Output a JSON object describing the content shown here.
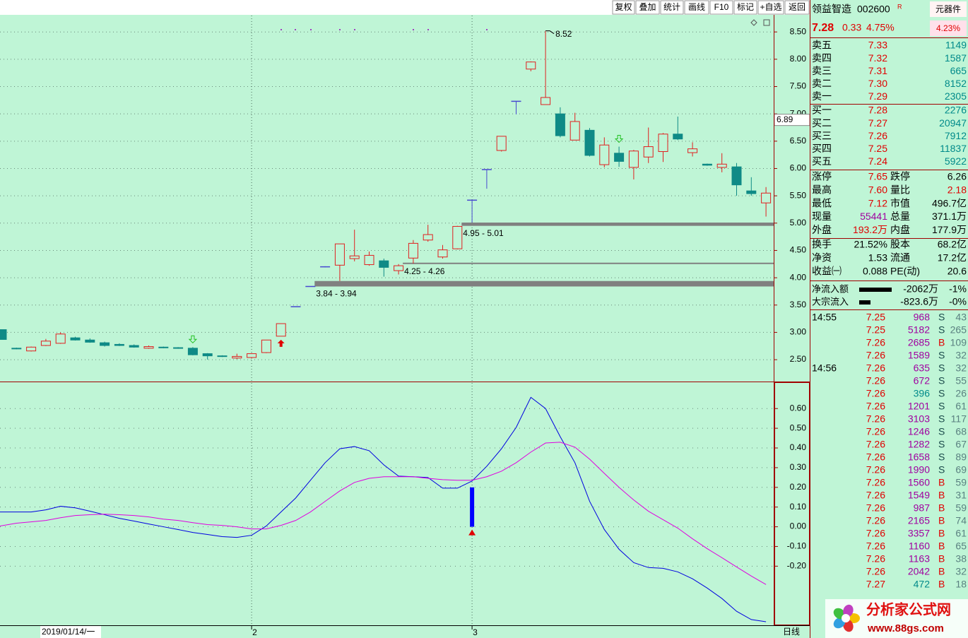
{
  "toolbar": [
    "复权",
    "叠加",
    "统计",
    "画线",
    "F10",
    "标记",
    "+自选",
    "返回"
  ],
  "chart_data": [
    {
      "type": "candlestick",
      "categories": [
        null,
        null,
        null,
        null,
        null,
        null,
        null,
        null,
        null,
        null,
        null,
        null,
        null,
        null,
        null,
        null,
        null,
        "2",
        null,
        null,
        null,
        null,
        null,
        null,
        null,
        null,
        null,
        null,
        null,
        null,
        null,
        null,
        "3",
        null,
        null,
        null,
        null,
        null,
        null,
        null,
        null,
        null,
        null,
        null,
        null,
        null,
        null,
        null,
        null,
        null,
        null,
        null,
        null
      ],
      "open": [
        3.05,
        2.71,
        2.66,
        2.76,
        2.8,
        2.9,
        2.86,
        2.81,
        2.78,
        2.76,
        2.71,
        2.73,
        2.72,
        2.71,
        2.61,
        2.57,
        2.53,
        2.54,
        2.63,
        2.93,
        3.47,
        3.84,
        4.2,
        4.23,
        4.35,
        4.24,
        4.31,
        4.13,
        4.36,
        4.69,
        4.38,
        4.53,
        5.42,
        5.98,
        6.33,
        7.23,
        7.82,
        7.17,
        7.0,
        6.52,
        6.7,
        6.07,
        6.28,
        6.02,
        6.21,
        6.31,
        6.63,
        6.29,
        6.08,
        6.02,
        6.03,
        5.59,
        5.37
      ],
      "high": [
        3.05,
        2.72,
        2.74,
        2.88,
        3.0,
        2.92,
        2.89,
        2.83,
        2.8,
        2.78,
        2.76,
        2.74,
        2.73,
        2.73,
        2.62,
        2.58,
        2.61,
        2.62,
        2.86,
        3.16,
        3.47,
        3.84,
        4.21,
        4.62,
        4.88,
        4.48,
        4.35,
        4.25,
        4.69,
        4.97,
        4.6,
        4.95,
        5.42,
        5.98,
        6.59,
        7.23,
        7.96,
        8.52,
        7.12,
        7.02,
        6.74,
        6.57,
        6.4,
        6.34,
        6.75,
        6.65,
        6.95,
        6.48,
        6.09,
        6.28,
        6.1,
        5.84,
        5.66
      ],
      "low": [
        2.87,
        2.69,
        2.65,
        2.75,
        2.79,
        2.85,
        2.81,
        2.74,
        2.75,
        2.72,
        2.7,
        2.71,
        2.7,
        2.58,
        2.5,
        2.55,
        2.51,
        2.52,
        2.62,
        2.93,
        3.47,
        3.84,
        4.19,
        3.94,
        4.3,
        4.22,
        4.02,
        4.06,
        4.26,
        4.66,
        4.35,
        4.52,
        5.01,
        5.63,
        6.31,
        6.99,
        7.78,
        7.17,
        6.57,
        6.52,
        6.22,
        6.02,
        6.03,
        5.8,
        6.1,
        6.12,
        6.52,
        6.22,
        6.05,
        5.93,
        5.5,
        5.5,
        5.12
      ],
      "close": [
        2.87,
        2.7,
        2.73,
        2.84,
        2.97,
        2.86,
        2.82,
        2.76,
        2.76,
        2.73,
        2.74,
        2.72,
        2.71,
        2.59,
        2.57,
        2.56,
        2.56,
        2.61,
        2.86,
        3.16,
        3.47,
        3.84,
        4.2,
        4.62,
        4.4,
        4.41,
        4.19,
        4.22,
        4.63,
        4.79,
        4.51,
        4.94,
        5.42,
        5.98,
        6.59,
        7.23,
        7.95,
        7.3,
        6.6,
        6.86,
        6.24,
        6.43,
        6.13,
        6.32,
        6.4,
        6.63,
        6.54,
        6.36,
        6.06,
        6.08,
        5.7,
        5.54,
        5.55
      ],
      "up_color": "#e02020",
      "down_color": "#0f8a86",
      "flat_color": "#4848d0",
      "ylim": [
        2.1,
        8.8
      ],
      "yticks": [
        {
          "value": 2.5,
          "label": "2.50"
        },
        {
          "value": 3.0,
          "label": "3.00"
        },
        {
          "value": 3.5,
          "label": "3.50"
        },
        {
          "value": 4.0,
          "label": "4.00"
        },
        {
          "value": 4.5,
          "label": "4.50"
        },
        {
          "value": 5.0,
          "label": "5.00"
        },
        {
          "value": 5.5,
          "label": "5.50"
        },
        {
          "value": 6.0,
          "label": "6.00"
        },
        {
          "value": 6.5,
          "label": "6.50"
        },
        {
          "value": 7.0,
          "label": "7.00"
        },
        {
          "value": 7.5,
          "label": "7.50"
        },
        {
          "value": 8.0,
          "label": "8.00"
        },
        {
          "value": 8.5,
          "label": "8.50"
        }
      ],
      "grid": true,
      "gaps": [
        {
          "low": 3.84,
          "high": 3.94,
          "label": "3.84 - 3.94"
        },
        {
          "low": 4.25,
          "high": 4.26,
          "label": "4.25 - 4.26"
        },
        {
          "low": 4.95,
          "high": 5.01,
          "label": "4.95 - 5.01"
        }
      ],
      "gap_color": "#808080",
      "cursor_price": 6.89,
      "cursor_date": "2019/01/14/一",
      "period": "日线"
    },
    {
      "type": "line",
      "ylim": [
        -0.5,
        0.73
      ],
      "yticks": [
        {
          "value": -0.2,
          "label": "-0.20"
        },
        {
          "value": -0.1,
          "label": "-0.10"
        },
        {
          "value": 0,
          "label": "0.00"
        },
        {
          "value": 0.1,
          "label": "0.10"
        },
        {
          "value": 0.2,
          "label": "0.20"
        },
        {
          "value": 0.3,
          "label": "0.30"
        },
        {
          "value": 0.4,
          "label": "0.40"
        },
        {
          "value": 0.5,
          "label": "0.50"
        },
        {
          "value": 0.6,
          "label": "0.60"
        }
      ],
      "grid": true,
      "series": [
        {
          "color": "#0000e0",
          "values": [
            0.075,
            0.075,
            0.075,
            0.086,
            0.104,
            0.096,
            0.079,
            0.061,
            0.043,
            0.029,
            0.014,
            0,
            -0.014,
            -0.029,
            -0.039,
            -0.05,
            -0.054,
            -0.043,
            0.004,
            0.075,
            0.146,
            0.236,
            0.325,
            0.396,
            0.407,
            0.386,
            0.314,
            0.257,
            0.254,
            0.25,
            0.196,
            0.196,
            0.232,
            0.307,
            0.396,
            0.504,
            0.657,
            0.6,
            0.457,
            0.325,
            0.129,
            -0.014,
            -0.114,
            -0.182,
            -0.207,
            -0.211,
            -0.229,
            -0.264,
            -0.311,
            -0.364,
            -0.429,
            -0.471,
            -0.482
          ]
        },
        {
          "color": "#e000e0",
          "values": [
            0.004,
            0.018,
            0.025,
            0.032,
            0.046,
            0.057,
            0.061,
            0.064,
            0.061,
            0.057,
            0.05,
            0.039,
            0.032,
            0.021,
            0.011,
            0.007,
            0,
            -0.011,
            -0.011,
            0.007,
            0.032,
            0.075,
            0.129,
            0.182,
            0.225,
            0.246,
            0.254,
            0.254,
            0.254,
            0.246,
            0.239,
            0.236,
            0.236,
            0.254,
            0.282,
            0.325,
            0.379,
            0.425,
            0.429,
            0.404,
            0.343,
            0.271,
            0.2,
            0.136,
            0.079,
            0.036,
            -0.007,
            -0.061,
            -0.111,
            -0.157,
            -0.204,
            -0.25,
            -0.293
          ]
        },
        {
          "type": "bar",
          "color": "#0000ff",
          "values": [
            null,
            null,
            null,
            null,
            null,
            null,
            null,
            null,
            null,
            null,
            null,
            null,
            null,
            null,
            null,
            null,
            null,
            null,
            null,
            null,
            null,
            null,
            null,
            null,
            null,
            null,
            null,
            null,
            null,
            null,
            null,
            null,
            0.2,
            null,
            null,
            null,
            null,
            null,
            null,
            null,
            null,
            null,
            null,
            null,
            null,
            null,
            null,
            null,
            null,
            null,
            null,
            null,
            null
          ]
        }
      ]
    }
  ],
  "quote": {
    "name": "领益智造",
    "code": "002600",
    "flag": "R",
    "industry": "元器件",
    "price": "7.28",
    "change": "0.33",
    "pct": "4.75%",
    "badge": "4.23%"
  },
  "order_book": {
    "asks": [
      [
        "卖五",
        "7.33",
        "1149"
      ],
      [
        "卖四",
        "7.32",
        "1587"
      ],
      [
        "卖三",
        "7.31",
        "665"
      ],
      [
        "卖二",
        "7.30",
        "8152"
      ],
      [
        "卖一",
        "7.29",
        "2305"
      ]
    ],
    "bids": [
      [
        "买一",
        "7.28",
        "2276"
      ],
      [
        "买二",
        "7.27",
        "20947"
      ],
      [
        "买三",
        "7.26",
        "7912"
      ],
      [
        "买四",
        "7.25",
        "11837"
      ],
      [
        "买五",
        "7.24",
        "5922"
      ]
    ]
  },
  "stats": [
    [
      "涨停",
      "7.65",
      "跌停",
      "6.26"
    ],
    [
      "最高",
      "7.60",
      "量比",
      "2.18"
    ],
    [
      "最低",
      "7.12",
      "市值",
      "496.7亿"
    ],
    [
      "现量",
      "55441",
      "总量",
      "371.1万"
    ],
    [
      "外盘",
      "193.2万",
      "内盘",
      "177.9万"
    ]
  ],
  "info": [
    [
      "换手",
      "21.52%",
      "股本",
      "68.2亿"
    ],
    [
      "净资",
      "1.53",
      "流通",
      "17.2亿"
    ],
    [
      "收益㈠",
      "0.088",
      "PE(动)",
      "20.6"
    ]
  ],
  "flows": [
    [
      "净流入额",
      "-2062万",
      "-1%"
    ],
    [
      "大宗流入",
      "-823.6万",
      "-0%"
    ]
  ],
  "ticks": [
    {
      "time": "14:55",
      "rows": [
        [
          "7.25",
          "968",
          "S",
          "43"
        ],
        [
          "7.25",
          "5182",
          "S",
          "265"
        ],
        [
          "7.26",
          "2685",
          "B",
          "109"
        ],
        [
          "7.26",
          "1589",
          "S",
          "32"
        ]
      ]
    },
    {
      "time": "14:56",
      "rows": [
        [
          "7.26",
          "635",
          "S",
          "32"
        ],
        [
          "7.26",
          "672",
          "S",
          "55"
        ],
        [
          "7.26",
          "396",
          "S",
          "26"
        ],
        [
          "7.26",
          "1201",
          "S",
          "61"
        ],
        [
          "7.26",
          "3103",
          "S",
          "117"
        ],
        [
          "7.26",
          "1246",
          "S",
          "68"
        ],
        [
          "7.26",
          "1282",
          "S",
          "67"
        ],
        [
          "7.26",
          "1658",
          "S",
          "89"
        ],
        [
          "7.26",
          "1990",
          "S",
          "69"
        ],
        [
          "7.26",
          "1560",
          "B",
          "59"
        ],
        [
          "7.26",
          "1549",
          "B",
          "31"
        ],
        [
          "7.26",
          "987",
          "B",
          "59"
        ],
        [
          "7.26",
          "2165",
          "B",
          "74"
        ],
        [
          "7.26",
          "3357",
          "B",
          "61"
        ],
        [
          "7.26",
          "1160",
          "B",
          "65"
        ],
        [
          "7.26",
          "1163",
          "B",
          "38"
        ],
        [
          "7.26",
          "2042",
          "B",
          "32"
        ],
        [
          "7.27",
          "472",
          "B",
          "18"
        ]
      ]
    }
  ],
  "watermark": {
    "title": "分析家公式网",
    "url": "www.88gs.com"
  }
}
